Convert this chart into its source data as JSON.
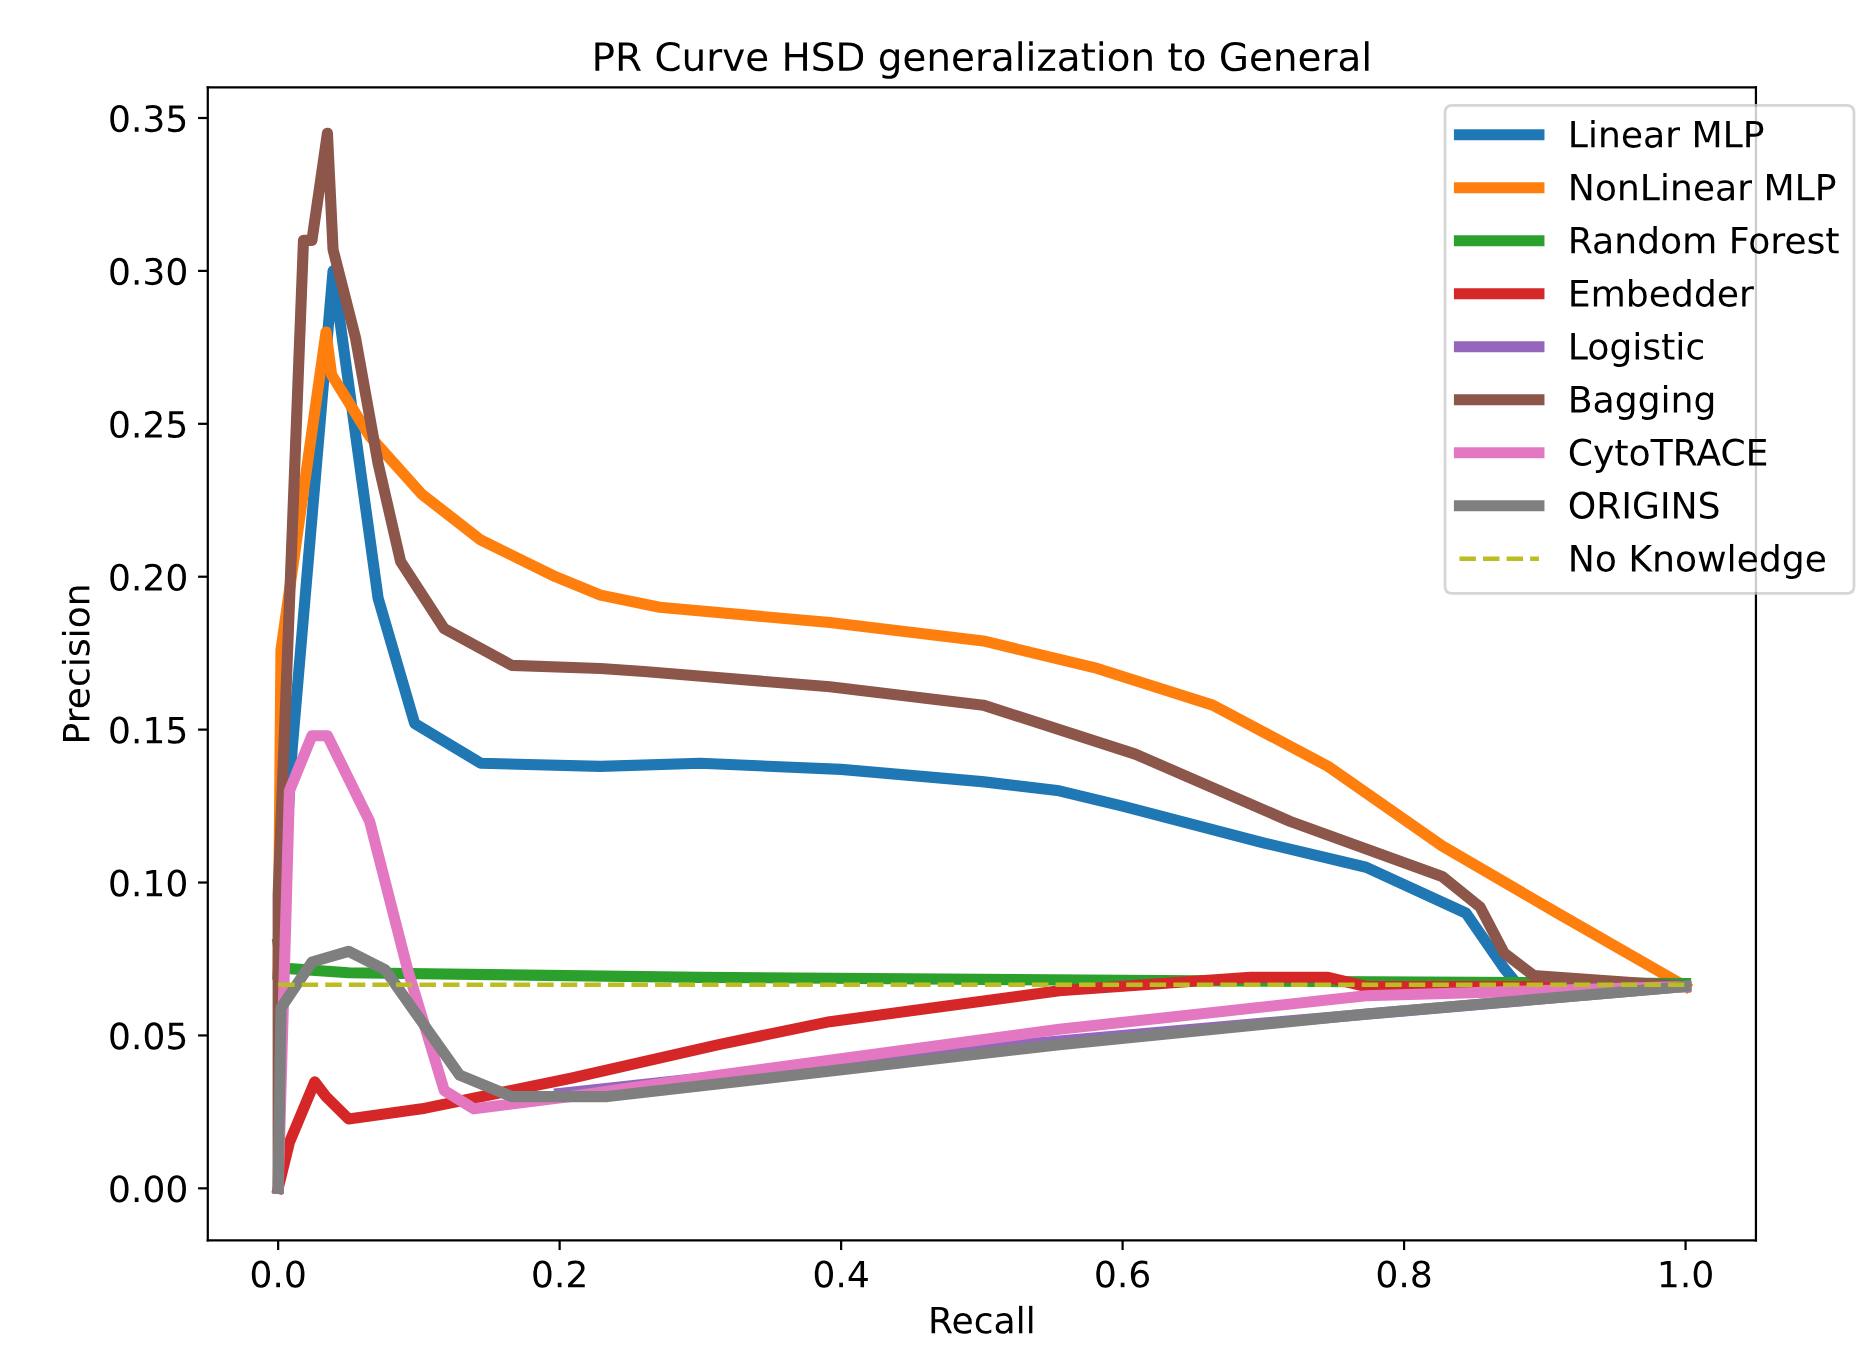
{
  "chart_data": {
    "type": "line",
    "title": "PR Curve HSD generalization to General",
    "xlabel": "Recall",
    "ylabel": "Precision",
    "xlim": [
      -0.05,
      1.05
    ],
    "ylim": [
      -0.017,
      0.36
    ],
    "xticks": [
      {
        "value": 0,
        "label": "0.0"
      },
      {
        "value": 0.2,
        "label": "0.2"
      },
      {
        "value": 0.4,
        "label": "0.4"
      },
      {
        "value": 0.6,
        "label": "0.6"
      },
      {
        "value": 0.8,
        "label": "0.8"
      },
      {
        "value": 1.0,
        "label": "1.0"
      }
    ],
    "yticks": [
      {
        "value": 0,
        "label": "0.00"
      },
      {
        "value": 0.05,
        "label": "0.05"
      },
      {
        "value": 0.1,
        "label": "0.10"
      },
      {
        "value": 0.15,
        "label": "0.15"
      },
      {
        "value": 0.2,
        "label": "0.20"
      },
      {
        "value": 0.25,
        "label": "0.25"
      },
      {
        "value": 0.3,
        "label": "0.30"
      },
      {
        "value": 0.35,
        "label": "0.35"
      }
    ],
    "grid": false,
    "legend": "top right",
    "marker": "none",
    "line_style": "solid",
    "series": [
      {
        "name": "Linear MLP",
        "color": "#1f77b4",
        "x": [
          0,
          0.01,
          0.039,
          0.071,
          0.097,
          0.144,
          0.229,
          0.3,
          0.4,
          0.5,
          0.555,
          0.6,
          0.7,
          0.773,
          0.844,
          0.871,
          0.88,
          1.0
        ],
        "values": [
          0.07,
          0.144,
          0.3,
          0.193,
          0.152,
          0.139,
          0.138,
          0.139,
          0.137,
          0.133,
          0.13,
          0.125,
          0.113,
          0.105,
          0.09,
          0.072,
          0.067,
          0.066
        ]
      },
      {
        "name": "NonLinear MLP",
        "color": "#ff7f0e",
        "x": [
          0,
          0.002,
          0.034,
          0.038,
          0.065,
          0.102,
          0.144,
          0.197,
          0.229,
          0.271,
          0.392,
          0.501,
          0.582,
          0.664,
          0.746,
          0.827,
          0.909,
          1.0
        ],
        "values": [
          0.07,
          0.176,
          0.28,
          0.266,
          0.246,
          0.227,
          0.212,
          0.2,
          0.194,
          0.19,
          0.185,
          0.179,
          0.17,
          0.158,
          0.138,
          0.112,
          0.09,
          0.066
        ]
      },
      {
        "name": "Random Forest",
        "color": "#2ca02c",
        "x": [
          0,
          0.003,
          0.05,
          0.3,
          0.6,
          1.0
        ],
        "values": [
          0.08,
          0.072,
          0.0705,
          0.069,
          0.068,
          0.067
        ]
      },
      {
        "name": "Embedder",
        "color": "#d62728",
        "x": [
          0,
          0.008,
          0.026,
          0.034,
          0.05,
          0.102,
          0.208,
          0.313,
          0.392,
          0.555,
          0.691,
          0.746,
          0.773,
          1.0
        ],
        "values": [
          0,
          0.015,
          0.0348,
          0.03,
          0.0227,
          0.026,
          0.036,
          0.047,
          0.0545,
          0.0646,
          0.069,
          0.069,
          0.066,
          0.066
        ]
      },
      {
        "name": "Logistic",
        "color": "#9467bd",
        "x": [
          0.2,
          0.5,
          1.0
        ],
        "values": [
          0.031,
          0.046,
          0.066
        ]
      },
      {
        "name": "Bagging",
        "color": "#8c564b",
        "x": [
          0,
          0.0,
          0.018,
          0.024,
          0.035,
          0.039,
          0.055,
          0.071,
          0.087,
          0.118,
          0.166,
          0.229,
          0.26,
          0.392,
          0.501,
          0.609,
          0.719,
          0.827,
          0.854,
          0.871,
          0.892,
          1.0
        ],
        "values": [
          0,
          0.096,
          0.31,
          0.31,
          0.345,
          0.307,
          0.278,
          0.237,
          0.205,
          0.183,
          0.171,
          0.17,
          0.169,
          0.164,
          0.158,
          0.142,
          0.12,
          0.102,
          0.092,
          0.077,
          0.0696,
          0.066
        ]
      },
      {
        "name": "CytoTRACE",
        "color": "#e377c2",
        "x": [
          0,
          0.008,
          0.024,
          0.035,
          0.065,
          0.092,
          0.118,
          0.139,
          0.208,
          0.313,
          0.555,
          0.773,
          1.0
        ],
        "values": [
          0,
          0.13,
          0.148,
          0.148,
          0.12,
          0.0715,
          0.032,
          0.026,
          0.03,
          0.037,
          0.052,
          0.063,
          0.066
        ]
      },
      {
        "name": "ORIGINS",
        "color": "#7f7f7f",
        "x": [
          0,
          0.002,
          0.024,
          0.05,
          0.076,
          0.102,
          0.129,
          0.166,
          0.234,
          0.555,
          0.773,
          1.0
        ],
        "values": [
          0,
          0.059,
          0.074,
          0.0775,
          0.0715,
          0.0545,
          0.037,
          0.03,
          0.03,
          0.047,
          0.057,
          0.066
        ]
      },
      {
        "name": "No Knowledge",
        "color": "#bcbd22",
        "line_style": "dashed",
        "x": [
          0,
          1.0
        ],
        "values": [
          0.0666,
          0.0666
        ]
      }
    ]
  }
}
